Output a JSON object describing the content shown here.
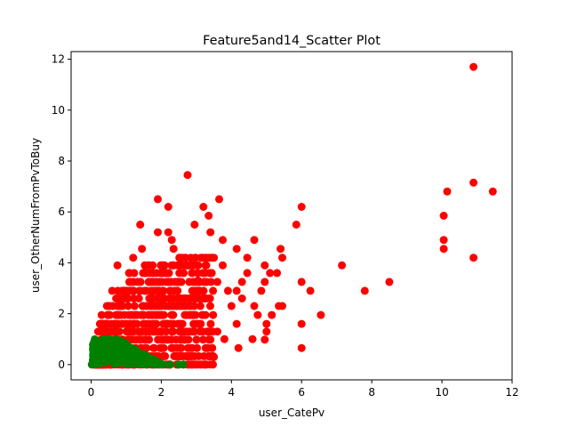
{
  "chart_data": {
    "type": "scatter",
    "title": "Feature5and14_Scatter Plot",
    "xlabel": "user_CatePv",
    "ylabel": "user_OtherNumFromPvToBuy",
    "xlim": [
      -0.57,
      12.0
    ],
    "ylim": [
      -0.6,
      12.3
    ],
    "x_ticks": [
      0,
      2,
      4,
      6,
      8,
      10,
      12
    ],
    "y_ticks": [
      0,
      2,
      4,
      6,
      8,
      10,
      12
    ],
    "grid": false,
    "series": [
      {
        "color": "#ff0000",
        "points": [
          [
            10.9,
            11.7
          ],
          [
            10.9,
            7.15
          ],
          [
            11.45,
            6.8
          ],
          [
            10.15,
            6.8
          ],
          [
            10.05,
            5.85
          ],
          [
            10.05,
            4.9
          ],
          [
            10.05,
            4.55
          ],
          [
            10.9,
            4.2
          ],
          [
            8.5,
            3.25
          ],
          [
            7.8,
            2.9
          ],
          [
            7.15,
            3.9
          ],
          [
            6.55,
            1.95
          ],
          [
            6.25,
            2.9
          ],
          [
            6.0,
            3.25
          ],
          [
            6.0,
            6.2
          ],
          [
            5.85,
            5.5
          ],
          [
            6.0,
            1.6
          ],
          [
            6.0,
            0.65
          ],
          [
            5.4,
            4.55
          ],
          [
            5.45,
            4.2
          ],
          [
            5.45,
            2.3
          ],
          [
            5.35,
            2.3
          ],
          [
            5.15,
            1.95
          ],
          [
            5.3,
            3.6
          ],
          [
            5.1,
            3.6
          ],
          [
            4.95,
            3.9
          ],
          [
            4.95,
            3.25
          ],
          [
            5.0,
            1.6
          ],
          [
            4.95,
            0.98
          ],
          [
            5.0,
            1.3
          ],
          [
            4.85,
            2.9
          ],
          [
            4.75,
            1.95
          ],
          [
            4.65,
            2.3
          ],
          [
            4.65,
            4.9
          ],
          [
            4.45,
            4.2
          ],
          [
            4.45,
            3.6
          ],
          [
            4.3,
            3.25
          ],
          [
            4.3,
            2.6
          ],
          [
            4.15,
            4.55
          ],
          [
            4.15,
            2.9
          ],
          [
            4.15,
            1.6
          ],
          [
            4.0,
            2.3
          ],
          [
            3.9,
            2.9
          ],
          [
            3.75,
            4.9
          ],
          [
            3.75,
            3.9
          ],
          [
            3.65,
            6.5
          ],
          [
            3.6,
            3.25
          ],
          [
            3.5,
            0.3
          ],
          [
            3.4,
            5.2
          ],
          [
            3.35,
            5.85
          ],
          [
            3.2,
            6.2
          ],
          [
            3.15,
            4.2
          ],
          [
            2.95,
            5.5
          ],
          [
            2.75,
            7.45
          ],
          [
            2.2,
            6.2
          ],
          [
            1.9,
            6.5
          ],
          [
            1.4,
            5.5
          ],
          [
            1.9,
            5.2
          ],
          [
            2.2,
            5.2
          ],
          [
            2.3,
            4.9
          ],
          [
            1.45,
            4.55
          ],
          [
            2.35,
            4.55
          ],
          [
            0.75,
            3.9
          ],
          [
            1.2,
            4.2
          ],
          [
            2.65,
            4.2
          ],
          [
            3.05,
            3.3
          ],
          [
            4.6,
            1.0
          ],
          [
            3.8,
            1.0
          ],
          [
            3.6,
            1.3
          ],
          [
            3.45,
            0.65
          ],
          [
            3.0,
            0.98
          ],
          [
            4.2,
            0.65
          ],
          [
            3.25,
            2.6
          ],
          [
            2.9,
            1.95
          ],
          [
            2.55,
            3.9
          ],
          [
            2.0,
            3.9
          ],
          [
            1.55,
            3.6
          ],
          [
            1.1,
            3.25
          ],
          [
            0.6,
            2.9
          ],
          [
            0.45,
            2.3
          ],
          [
            0.3,
            1.95
          ],
          [
            0.2,
            1.3
          ],
          [
            0.1,
            0.65
          ],
          [
            0.02,
            0.0
          ],
          [
            0.15,
            0.3
          ]
        ],
        "dense_region": {
          "x_range": [
            0.1,
            3.5
          ],
          "y_levels": [
            0.0,
            0.33,
            0.65,
            0.98,
            1.3,
            1.6,
            1.95,
            2.3,
            2.6,
            2.9,
            3.25,
            3.6,
            3.9,
            4.2
          ],
          "envelope": [
            [
              0.1,
              0.65
            ],
            [
              0.25,
              1.6
            ],
            [
              0.45,
              2.3
            ],
            [
              0.7,
              2.9
            ],
            [
              1.0,
              3.6
            ],
            [
              1.5,
              3.9
            ],
            [
              2.5,
              4.2
            ],
            [
              3.5,
              4.2
            ]
          ]
        }
      },
      {
        "color": "#008000",
        "points": [
          [
            0.02,
            0.0
          ],
          [
            0.35,
            1.0
          ],
          [
            0.5,
            1.0
          ],
          [
            0.6,
            0.95
          ],
          [
            0.75,
            0.85
          ],
          [
            0.9,
            0.75
          ],
          [
            1.1,
            0.5
          ],
          [
            1.2,
            0.3
          ],
          [
            1.4,
            0.15
          ],
          [
            1.6,
            0.0
          ],
          [
            1.8,
            0.0
          ],
          [
            2.05,
            0.0
          ],
          [
            2.25,
            0.0
          ],
          [
            2.5,
            0.0
          ],
          [
            2.62,
            0.0
          ]
        ],
        "dense_region": {
          "x_range": [
            0.05,
            2.0
          ],
          "y_range": [
            0.0,
            1.0
          ]
        }
      }
    ]
  }
}
